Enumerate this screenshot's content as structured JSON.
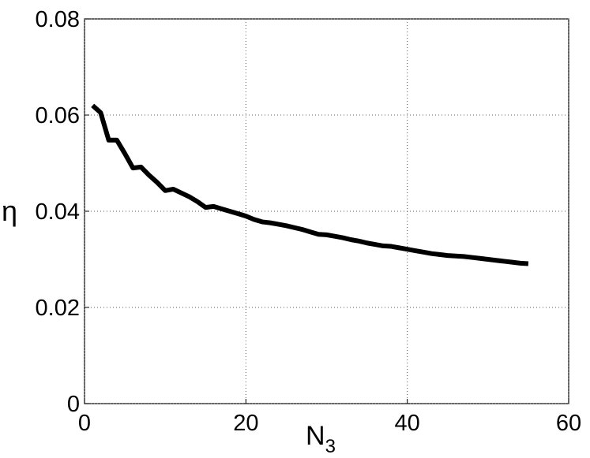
{
  "chart_data": {
    "type": "line",
    "xlabel": {
      "text": "N",
      "subscript": "3"
    },
    "ylabel": "η",
    "x": [
      1,
      2,
      3,
      4,
      5,
      6,
      7,
      8,
      9,
      10,
      11,
      12,
      13,
      14,
      15,
      16,
      17,
      18,
      19,
      20,
      21,
      22,
      23,
      24,
      25,
      26,
      27,
      28,
      29,
      30,
      31,
      32,
      33,
      34,
      35,
      36,
      37,
      38,
      39,
      40,
      41,
      42,
      43,
      44,
      45,
      46,
      47,
      48,
      49,
      50,
      51,
      52,
      53,
      54,
      55
    ],
    "series": [
      {
        "color": "#000000",
        "values": [
          0.062,
          0.0605,
          0.0548,
          0.0548,
          0.052,
          0.049,
          0.0492,
          0.0475,
          0.046,
          0.0443,
          0.0446,
          0.0438,
          0.043,
          0.042,
          0.0408,
          0.041,
          0.0405,
          0.04,
          0.0395,
          0.039,
          0.0383,
          0.0378,
          0.0376,
          0.0373,
          0.037,
          0.0366,
          0.0362,
          0.0357,
          0.0352,
          0.0351,
          0.0348,
          0.0345,
          0.0341,
          0.0338,
          0.0334,
          0.0331,
          0.0328,
          0.0327,
          0.0324,
          0.0321,
          0.0318,
          0.0315,
          0.0312,
          0.031,
          0.0308,
          0.0307,
          0.0306,
          0.0304,
          0.0302,
          0.03,
          0.0298,
          0.0296,
          0.0294,
          0.0292,
          0.0291
        ]
      }
    ],
    "xlim": [
      0,
      60
    ],
    "xticks": [
      0,
      20,
      40,
      60
    ],
    "ylim": [
      0,
      0.08
    ],
    "yticks": [
      0,
      0.02,
      0.04,
      0.06,
      0.08
    ],
    "grid": true
  }
}
